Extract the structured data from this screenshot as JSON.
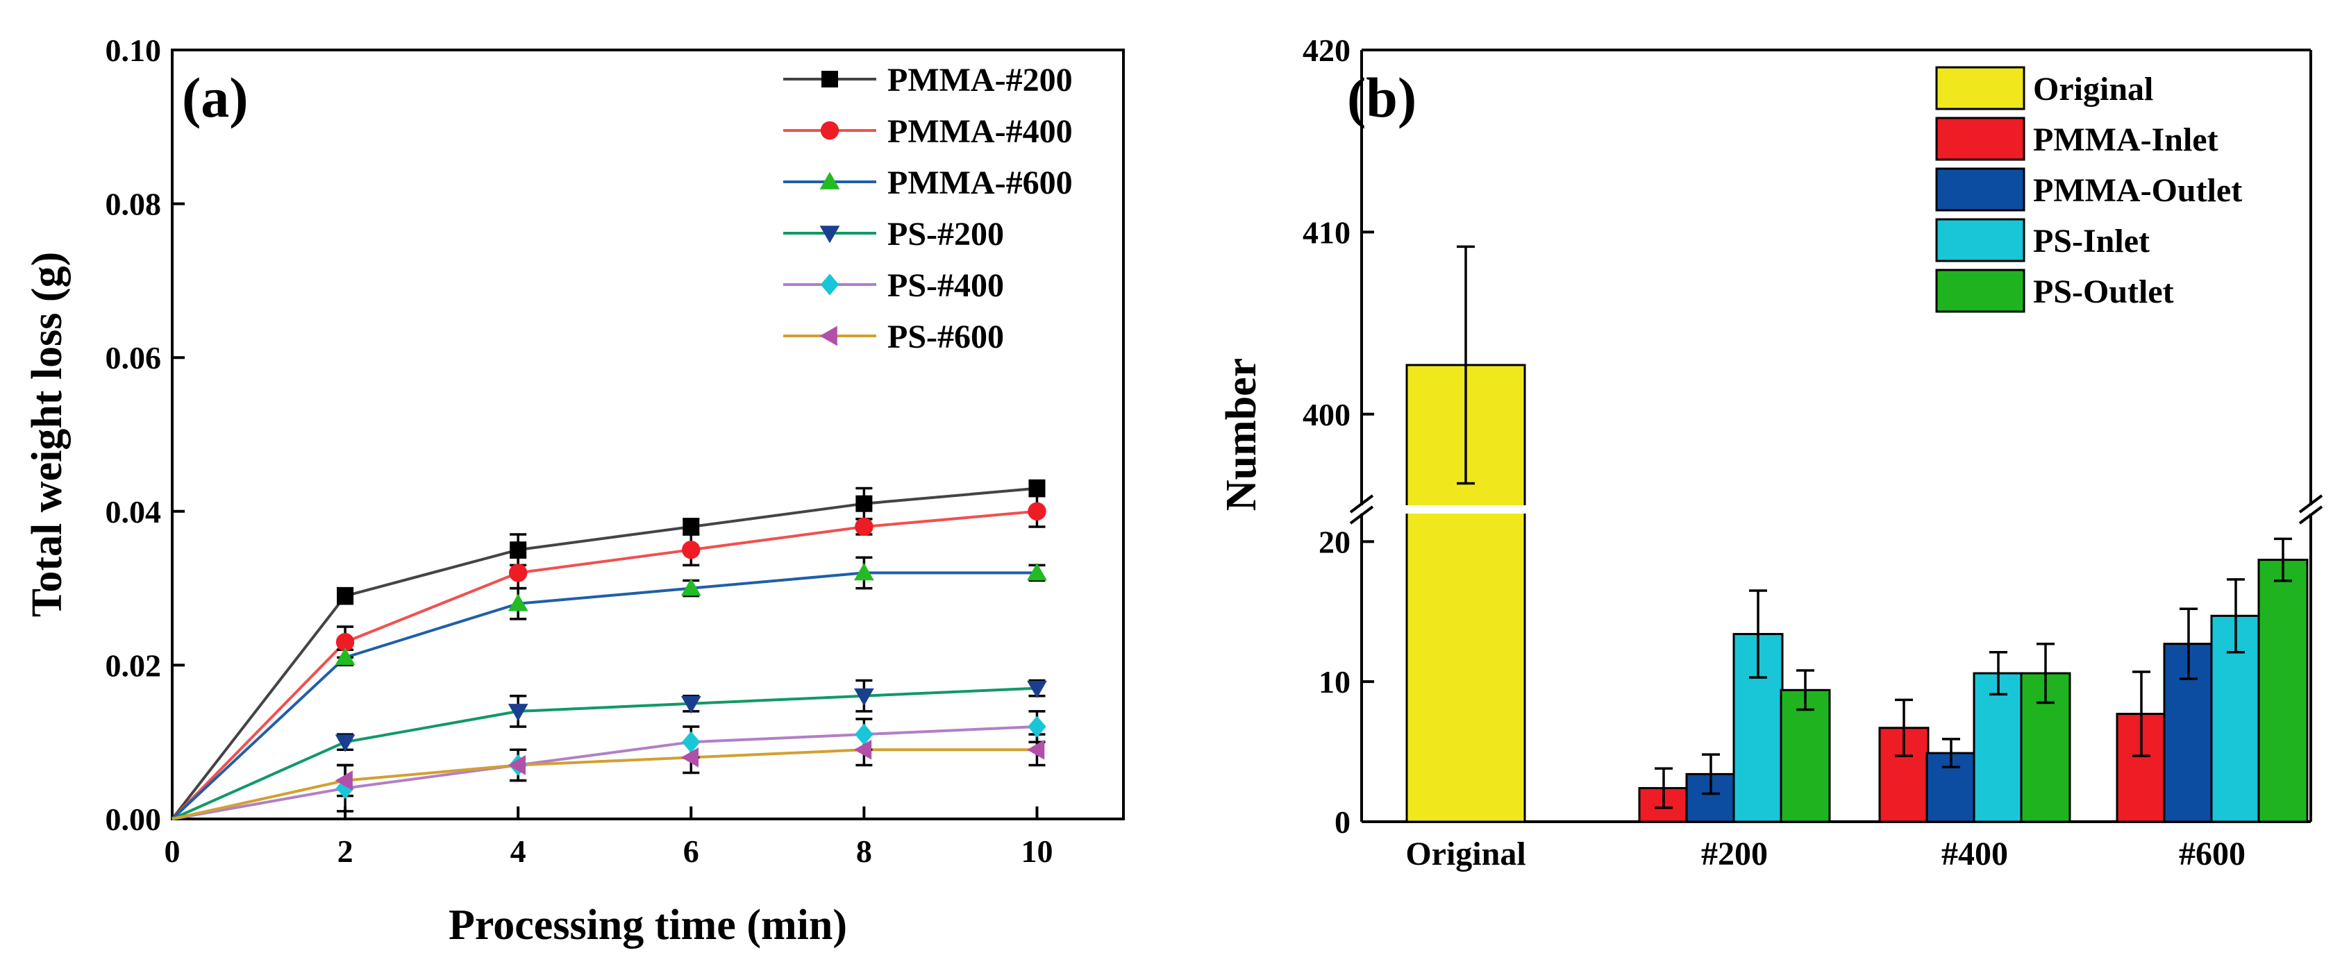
{
  "chart_data": [
    {
      "panel": "(a)",
      "type": "line",
      "xlabel": "Processing time (min)",
      "ylabel": "Total weight loss (g)",
      "xlim": [
        0,
        11
      ],
      "ylim": [
        0,
        0.1
      ],
      "xticks": [
        0,
        2,
        4,
        6,
        8,
        10
      ],
      "xtick_labels": [
        "0",
        "2",
        "4",
        "6",
        "8",
        "10"
      ],
      "yticks": [
        0,
        0.02,
        0.04,
        0.06,
        0.08,
        0.1
      ],
      "ytick_labels": [
        "0.00",
        "0.02",
        "0.04",
        "0.06",
        "0.08",
        "0.10"
      ],
      "legend_position": "top-right",
      "x": [
        0,
        2,
        4,
        6,
        8,
        10
      ],
      "series": [
        {
          "name": "PMMA-#200",
          "color": "#000000",
          "line_color": "#444444",
          "marker": "square",
          "values": [
            0,
            0.029,
            0.035,
            0.038,
            0.041,
            0.043
          ],
          "errors": [
            0,
            0.001,
            0.002,
            0.001,
            0.002,
            0.001
          ]
        },
        {
          "name": "PMMA-#400",
          "color": "#ee1c25",
          "line_color": "#f0504f",
          "marker": "circle",
          "values": [
            0,
            0.023,
            0.032,
            0.035,
            0.038,
            0.04
          ],
          "errors": [
            0,
            0.002,
            0.002,
            0.002,
            0.001,
            0.002
          ]
        },
        {
          "name": "PMMA-#600",
          "color": "#22bb22",
          "line_color": "#1f5fa8",
          "marker": "triangle-up",
          "values": [
            0,
            0.021,
            0.028,
            0.03,
            0.032,
            0.032
          ],
          "errors": [
            0,
            0.001,
            0.002,
            0.001,
            0.002,
            0.001
          ]
        },
        {
          "name": "PS-#200",
          "color": "#1a3f8f",
          "line_color": "#119966",
          "marker": "triangle-down",
          "values": [
            0,
            0.01,
            0.014,
            0.015,
            0.016,
            0.017
          ],
          "errors": [
            0,
            0.001,
            0.002,
            0.001,
            0.002,
            0.001
          ]
        },
        {
          "name": "PS-#400",
          "color": "#19c6d8",
          "line_color": "#b27fc6",
          "marker": "diamond",
          "values": [
            0,
            0.004,
            0.007,
            0.01,
            0.011,
            0.012
          ],
          "errors": [
            0,
            0.003,
            0.002,
            0.002,
            0.002,
            0.002
          ]
        },
        {
          "name": "PS-#600",
          "color": "#b24fa8",
          "line_color": "#d2a030",
          "marker": "triangle-left",
          "values": [
            0,
            0.005,
            0.007,
            0.008,
            0.009,
            0.009
          ],
          "errors": [
            0,
            0.002,
            0.002,
            0.002,
            0.002,
            0.002
          ]
        }
      ]
    },
    {
      "panel": "(b)",
      "type": "bar",
      "ylabel": "Number",
      "categories": [
        "Original",
        "#200",
        "#400",
        "#600"
      ],
      "axis_break": {
        "lower_range": [
          0,
          22
        ],
        "upper_range": [
          395,
          420
        ]
      },
      "yticks_lower": [
        0,
        10,
        20
      ],
      "ytick_labels_lower": [
        "0",
        "10",
        "20"
      ],
      "yticks_upper": [
        400,
        410,
        420
      ],
      "ytick_labels_upper": [
        "400",
        "410",
        "420"
      ],
      "legend_position": "top-right",
      "series": [
        {
          "name": "Original",
          "color": "#f0e81c",
          "values": [
            402.7,
            null,
            null,
            null
          ],
          "errors": [
            6.5,
            null,
            null,
            null
          ]
        },
        {
          "name": "PMMA-Inlet",
          "color": "#ee1c25",
          "values": [
            null,
            2.4,
            6.7,
            7.7
          ],
          "errors": [
            null,
            1.4,
            2.0,
            3.0
          ]
        },
        {
          "name": "PMMA-Outlet",
          "color": "#0d4da1",
          "values": [
            null,
            3.4,
            4.9,
            12.7
          ],
          "errors": [
            null,
            1.4,
            1.0,
            2.5
          ]
        },
        {
          "name": "PS-Inlet",
          "color": "#19c6d8",
          "values": [
            null,
            13.4,
            10.6,
            14.7
          ],
          "errors": [
            null,
            3.1,
            1.5,
            2.6
          ]
        },
        {
          "name": "PS-Outlet",
          "color": "#1fb41f",
          "values": [
            null,
            9.4,
            10.6,
            18.7
          ],
          "errors": [
            null,
            1.4,
            2.1,
            1.5
          ]
        }
      ]
    }
  ]
}
